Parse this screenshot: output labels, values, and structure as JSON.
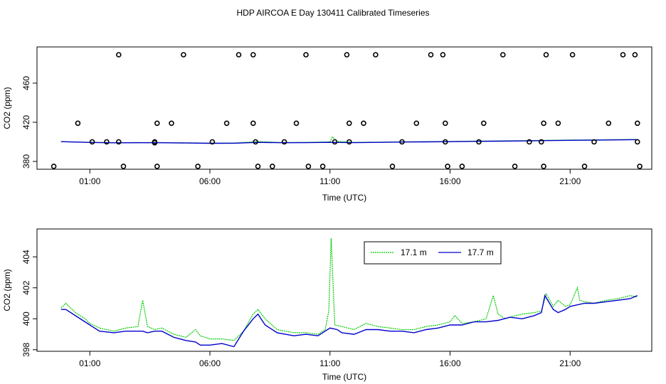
{
  "title": "HDP AIRCOA E  Day 130411  Calibrated Timeseries",
  "colors": {
    "series_a": "#00cc00",
    "series_b": "#0000cc",
    "points": "#000000",
    "axis": "#000000"
  },
  "chart_data": [
    {
      "type": "line",
      "name": "top-panel",
      "xlabel": "Time (UTC)",
      "ylabel": "CO2 (ppm)",
      "xlim": [
        -1.2,
        24.4
      ],
      "ylim": [
        372,
        497
      ],
      "xticks": [
        1,
        6,
        11,
        16,
        21
      ],
      "xtick_labels": [
        "01:00",
        "06:00",
        "11:00",
        "16:00",
        "21:00"
      ],
      "yticks": [
        380,
        420,
        460
      ],
      "ytick_labels": [
        "380",
        "420",
        "460"
      ],
      "grid": false,
      "series": [
        {
          "color_key": "series_a",
          "x": [
            -0.2,
            1,
            2,
            3,
            4,
            5,
            6,
            7,
            8,
            9,
            10,
            11,
            11.1,
            11.3,
            12,
            13,
            14,
            15,
            16,
            17,
            18,
            19,
            20,
            21,
            22,
            23,
            23.8
          ],
          "y": [
            400.2,
            399.5,
            399,
            399.3,
            399.2,
            399,
            398.7,
            398.8,
            400.3,
            399.3,
            399.5,
            400,
            405,
            400.5,
            399.5,
            399.7,
            400,
            400.2,
            400.4,
            400.8,
            401,
            401.2,
            401.6,
            401.9,
            402,
            402.3,
            402.5
          ]
        },
        {
          "color_key": "series_b",
          "x": [
            -0.2,
            1,
            2,
            3,
            4,
            5,
            6,
            7,
            8,
            9,
            10,
            11,
            12,
            13,
            14,
            15,
            16,
            17,
            18,
            19,
            20,
            21,
            22,
            23,
            23.8
          ],
          "y": [
            400.2,
            399.4,
            399,
            399.1,
            399.1,
            398.8,
            398.5,
            398.6,
            399.5,
            399.1,
            399.2,
            399.5,
            399.2,
            399.5,
            399.8,
            400,
            400.2,
            400.5,
            400.7,
            400.9,
            401.3,
            401.6,
            401.7,
            402,
            402.2
          ]
        }
      ],
      "points": {
        "symbol": "open-circle",
        "x": [
          1.1,
          0.5,
          -0.5,
          2.2,
          1.7,
          2.4,
          3.7,
          2.2,
          3.8,
          3.7,
          3.8,
          4.4,
          4.9,
          5.5,
          6.1,
          6.7,
          7.2,
          7.8,
          7.8,
          8,
          7.9,
          8.6,
          9.1,
          9.6,
          10,
          10.1,
          10.7,
          11.2,
          11.7,
          11.8,
          11.8,
          12.4,
          12.9,
          13.6,
          14,
          14.6,
          15.2,
          15.7,
          15.8,
          15.8,
          15.9,
          16.5,
          17.2,
          17.4,
          18.2,
          18.7,
          19.3,
          19.8,
          19.9,
          19.9,
          20,
          20.5,
          21.1,
          21.6,
          22,
          22.6,
          23.2,
          23.7,
          23.8,
          23.8,
          23.9
        ],
        "y": [
          400,
          419,
          375,
          489,
          400,
          375,
          399,
          400,
          375,
          400,
          419,
          419,
          489,
          375,
          400,
          419,
          489,
          489,
          419,
          375,
          400,
          375,
          400,
          419,
          489,
          375,
          375,
          400,
          489,
          419,
          400,
          419,
          489,
          375,
          400,
          419,
          489,
          489,
          419,
          400,
          375,
          375,
          400,
          419,
          489,
          375,
          400,
          400,
          375,
          419,
          489,
          419,
          489,
          375,
          400,
          419,
          489,
          489,
          419,
          400,
          375
        ]
      }
    },
    {
      "type": "line",
      "name": "bottom-panel",
      "xlabel": "Time (UTC)",
      "ylabel": "CO2 (ppm)",
      "xlim": [
        -1.2,
        24.4
      ],
      "ylim": [
        397.9,
        405.8
      ],
      "xticks": [
        1,
        6,
        11,
        16,
        21
      ],
      "xtick_labels": [
        "01:00",
        "06:00",
        "11:00",
        "16:00",
        "21:00"
      ],
      "yticks": [
        398,
        400,
        402,
        404
      ],
      "ytick_labels": [
        "398",
        "400",
        "402",
        "404"
      ],
      "grid": false,
      "series": [
        {
          "name": "17.1 m",
          "color_key": "series_a",
          "x": [
            -0.2,
            0,
            0.4,
            0.8,
            1,
            1.4,
            2,
            2.5,
            3,
            3.2,
            3.4,
            3.7,
            4,
            4.5,
            5,
            5.4,
            5.6,
            6,
            6.5,
            7,
            7.4,
            7.8,
            8,
            8.3,
            8.8,
            9.5,
            10,
            10.5,
            10.8,
            10.95,
            11.05,
            11.2,
            11.5,
            12,
            12.5,
            13,
            13.5,
            14,
            14.5,
            15,
            15.5,
            16,
            16.2,
            16.5,
            17,
            17.5,
            17.8,
            18,
            18.3,
            18.7,
            19,
            19.5,
            19.8,
            20,
            20.3,
            20.5,
            20.8,
            21,
            21.3,
            21.4,
            21.6,
            22,
            22.5,
            23,
            23.5,
            23.8
          ],
          "y": [
            400.7,
            401,
            400.4,
            400,
            399.7,
            399.4,
            399.2,
            399.4,
            399.5,
            401.2,
            399.5,
            399.3,
            399.4,
            399,
            398.8,
            399.3,
            398.9,
            398.7,
            398.7,
            398.6,
            399.2,
            400.3,
            400.6,
            400,
            399.3,
            399.1,
            399.1,
            399,
            399.3,
            400.5,
            405.2,
            399.6,
            399.5,
            399.3,
            399.7,
            399.5,
            399.4,
            399.3,
            399.3,
            399.5,
            399.6,
            399.8,
            400.2,
            399.7,
            399.8,
            400,
            401.5,
            400.3,
            400,
            400.2,
            400.3,
            400.4,
            400.5,
            401.6,
            400.8,
            401.2,
            400.8,
            400.9,
            402,
            401.2,
            401.1,
            401,
            401.2,
            401.3,
            401.5,
            401.4
          ]
        },
        {
          "name": "17.7 m",
          "color_key": "series_b",
          "x": [
            -0.2,
            0,
            0.4,
            0.8,
            1,
            1.4,
            2,
            2.5,
            3,
            3.2,
            3.4,
            3.7,
            4,
            4.5,
            5,
            5.4,
            5.6,
            6,
            6.5,
            7,
            7.4,
            7.8,
            8,
            8.3,
            8.8,
            9.5,
            10,
            10.5,
            11,
            11.3,
            11.5,
            12,
            12.5,
            13,
            13.5,
            14,
            14.5,
            15,
            15.5,
            16,
            16.5,
            17,
            17.5,
            18,
            18.5,
            19,
            19.5,
            19.8,
            19.95,
            20.3,
            20.5,
            20.8,
            21,
            21.3,
            21.6,
            22,
            22.5,
            23,
            23.5,
            23.8
          ],
          "y": [
            400.6,
            400.6,
            400.2,
            399.8,
            399.6,
            399.2,
            399.1,
            399.2,
            399.2,
            399.2,
            399.1,
            399.2,
            399.2,
            398.8,
            398.6,
            398.5,
            398.3,
            398.3,
            398.4,
            398.2,
            399.2,
            400,
            400.3,
            399.6,
            399.1,
            398.9,
            399,
            398.9,
            399.4,
            399.3,
            399.1,
            399,
            399.3,
            399.3,
            399.2,
            399.2,
            399.1,
            399.3,
            399.4,
            399.6,
            399.6,
            399.8,
            399.8,
            399.9,
            400.1,
            400,
            400.2,
            400.4,
            401.5,
            400.6,
            400.4,
            400.6,
            400.8,
            400.9,
            401,
            401,
            401.1,
            401.2,
            401.3,
            401.5
          ]
        }
      ],
      "legend": {
        "position": "top-right",
        "labels": [
          "17.1 m",
          "17.7 m"
        ]
      }
    }
  ]
}
